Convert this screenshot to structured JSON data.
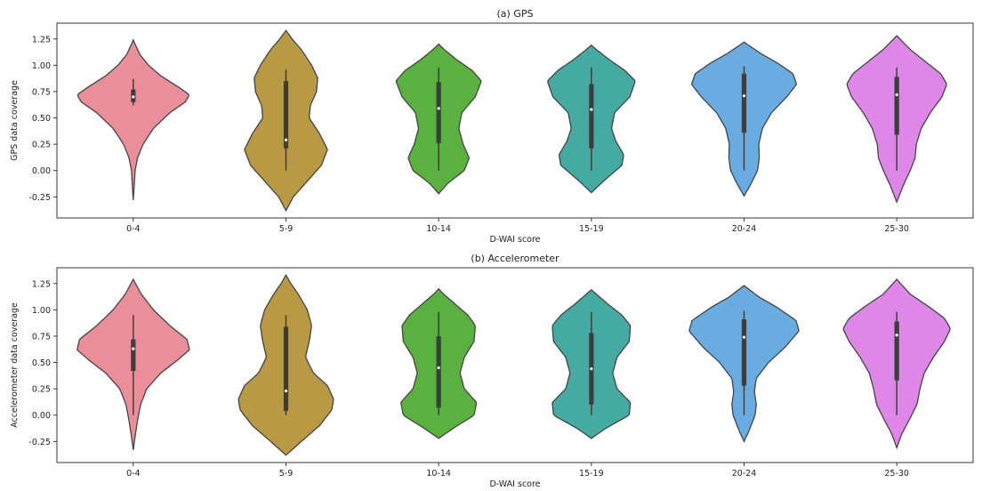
{
  "chart_data": [
    {
      "type": "violin",
      "title": "(a) GPS",
      "xlabel": "D-WAI score",
      "ylabel": "GPS data coverage",
      "ylim": [
        -0.45,
        1.4
      ],
      "yticks": [
        "1.25",
        "1.00",
        "0.75",
        "0.50",
        "0.25",
        "0.00",
        "-0.25"
      ],
      "grid": false,
      "categories": [
        "0-4",
        "5-9",
        "10-14",
        "15-19",
        "20-24",
        "25-30"
      ],
      "colors": [
        "#ea8f99",
        "#b89a44",
        "#5bb140",
        "#45aaa2",
        "#68ace2",
        "#de87e8"
      ],
      "violins": [
        {
          "extent": [
            -0.28,
            1.24
          ],
          "median": 0.7,
          "q1": 0.65,
          "q3": 0.77,
          "whisker": [
            0.62,
            0.87
          ],
          "profile": [
            [
              -0.28,
              0
            ],
            [
              -0.15,
              0.015
            ],
            [
              0.0,
              0.03
            ],
            [
              0.12,
              0.07
            ],
            [
              0.25,
              0.16
            ],
            [
              0.4,
              0.33
            ],
            [
              0.55,
              0.6
            ],
            [
              0.65,
              0.85
            ],
            [
              0.72,
              0.92
            ],
            [
              0.8,
              0.72
            ],
            [
              0.9,
              0.45
            ],
            [
              1.0,
              0.25
            ],
            [
              1.1,
              0.11
            ],
            [
              1.2,
              0.03
            ],
            [
              1.24,
              0
            ]
          ]
        },
        {
          "extent": [
            -0.38,
            1.33
          ],
          "median": 0.29,
          "q1": 0.21,
          "q3": 0.85,
          "whisker": [
            0.0,
            0.96
          ],
          "profile": [
            [
              -0.38,
              0
            ],
            [
              -0.25,
              0.12
            ],
            [
              -0.1,
              0.35
            ],
            [
              0.05,
              0.58
            ],
            [
              0.2,
              0.68
            ],
            [
              0.35,
              0.55
            ],
            [
              0.5,
              0.38
            ],
            [
              0.62,
              0.4
            ],
            [
              0.75,
              0.5
            ],
            [
              0.88,
              0.52
            ],
            [
              1.0,
              0.42
            ],
            [
              1.15,
              0.25
            ],
            [
              1.25,
              0.1
            ],
            [
              1.33,
              0
            ]
          ]
        },
        {
          "extent": [
            -0.22,
            1.2
          ],
          "median": 0.59,
          "q1": 0.26,
          "q3": 0.84,
          "whisker": [
            0.0,
            0.98
          ],
          "profile": [
            [
              -0.22,
              0
            ],
            [
              -0.12,
              0.15
            ],
            [
              0.0,
              0.42
            ],
            [
              0.12,
              0.5
            ],
            [
              0.25,
              0.4
            ],
            [
              0.4,
              0.33
            ],
            [
              0.55,
              0.38
            ],
            [
              0.7,
              0.6
            ],
            [
              0.85,
              0.7
            ],
            [
              0.95,
              0.55
            ],
            [
              1.05,
              0.3
            ],
            [
              1.15,
              0.09
            ],
            [
              1.2,
              0
            ]
          ]
        },
        {
          "extent": [
            -0.21,
            1.19
          ],
          "median": 0.58,
          "q1": 0.21,
          "q3": 0.82,
          "whisker": [
            0.0,
            0.98
          ],
          "profile": [
            [
              -0.21,
              0
            ],
            [
              -0.1,
              0.2
            ],
            [
              0.05,
              0.5
            ],
            [
              0.15,
              0.53
            ],
            [
              0.28,
              0.4
            ],
            [
              0.4,
              0.33
            ],
            [
              0.55,
              0.38
            ],
            [
              0.7,
              0.63
            ],
            [
              0.85,
              0.72
            ],
            [
              0.95,
              0.55
            ],
            [
              1.05,
              0.3
            ],
            [
              1.15,
              0.08
            ],
            [
              1.19,
              0
            ]
          ]
        },
        {
          "extent": [
            -0.24,
            1.22
          ],
          "median": 0.71,
          "q1": 0.36,
          "q3": 0.92,
          "whisker": [
            0.0,
            0.99
          ],
          "profile": [
            [
              -0.24,
              0
            ],
            [
              -0.12,
              0.12
            ],
            [
              0.0,
              0.22
            ],
            [
              0.12,
              0.25
            ],
            [
              0.25,
              0.24
            ],
            [
              0.4,
              0.3
            ],
            [
              0.55,
              0.45
            ],
            [
              0.7,
              0.7
            ],
            [
              0.82,
              0.86
            ],
            [
              0.92,
              0.8
            ],
            [
              1.02,
              0.55
            ],
            [
              1.12,
              0.25
            ],
            [
              1.22,
              0
            ]
          ]
        },
        {
          "extent": [
            -0.3,
            1.28
          ],
          "median": 0.72,
          "q1": 0.34,
          "q3": 0.89,
          "whisker": [
            0.0,
            0.98
          ],
          "profile": [
            [
              -0.3,
              0
            ],
            [
              -0.15,
              0.1
            ],
            [
              0.0,
              0.22
            ],
            [
              0.12,
              0.3
            ],
            [
              0.25,
              0.32
            ],
            [
              0.4,
              0.4
            ],
            [
              0.55,
              0.55
            ],
            [
              0.7,
              0.74
            ],
            [
              0.82,
              0.82
            ],
            [
              0.92,
              0.72
            ],
            [
              1.02,
              0.5
            ],
            [
              1.15,
              0.22
            ],
            [
              1.28,
              0
            ]
          ]
        }
      ]
    },
    {
      "type": "violin",
      "title": "(b) Accelerometer",
      "xlabel": "D-WAI score",
      "ylabel": "Accelerometer data coverage",
      "ylim": [
        -0.45,
        1.4
      ],
      "yticks": [
        "1.25",
        "1.00",
        "0.75",
        "0.50",
        "0.25",
        "0.00",
        "-0.25"
      ],
      "grid": false,
      "categories": [
        "0-4",
        "5-9",
        "10-14",
        "15-19",
        "20-24",
        "25-30"
      ],
      "colors": [
        "#ea8f99",
        "#b89a44",
        "#5bb140",
        "#45aaa2",
        "#68ace2",
        "#de87e8"
      ],
      "violins": [
        {
          "extent": [
            -0.33,
            1.29
          ],
          "median": 0.63,
          "q1": 0.42,
          "q3": 0.72,
          "whisker": [
            0.0,
            0.95
          ],
          "profile": [
            [
              -0.33,
              0
            ],
            [
              -0.2,
              0.03
            ],
            [
              -0.05,
              0.07
            ],
            [
              0.1,
              0.12
            ],
            [
              0.25,
              0.22
            ],
            [
              0.4,
              0.45
            ],
            [
              0.52,
              0.72
            ],
            [
              0.62,
              0.92
            ],
            [
              0.72,
              0.88
            ],
            [
              0.85,
              0.6
            ],
            [
              1.0,
              0.33
            ],
            [
              1.15,
              0.13
            ],
            [
              1.29,
              0
            ]
          ]
        },
        {
          "extent": [
            -0.38,
            1.33
          ],
          "median": 0.23,
          "q1": 0.04,
          "q3": 0.84,
          "whisker": [
            0.0,
            0.95
          ],
          "profile": [
            [
              -0.38,
              0
            ],
            [
              -0.25,
              0.25
            ],
            [
              -0.1,
              0.55
            ],
            [
              0.05,
              0.75
            ],
            [
              0.15,
              0.78
            ],
            [
              0.28,
              0.68
            ],
            [
              0.4,
              0.45
            ],
            [
              0.55,
              0.32
            ],
            [
              0.7,
              0.38
            ],
            [
              0.85,
              0.42
            ],
            [
              1.0,
              0.35
            ],
            [
              1.15,
              0.2
            ],
            [
              1.25,
              0.08
            ],
            [
              1.33,
              0
            ]
          ]
        },
        {
          "extent": [
            -0.22,
            1.2
          ],
          "median": 0.45,
          "q1": 0.07,
          "q3": 0.75,
          "whisker": [
            0.0,
            0.98
          ],
          "profile": [
            [
              -0.22,
              0
            ],
            [
              -0.12,
              0.25
            ],
            [
              0.0,
              0.58
            ],
            [
              0.12,
              0.62
            ],
            [
              0.25,
              0.42
            ],
            [
              0.4,
              0.35
            ],
            [
              0.55,
              0.42
            ],
            [
              0.7,
              0.58
            ],
            [
              0.85,
              0.6
            ],
            [
              0.95,
              0.48
            ],
            [
              1.05,
              0.28
            ],
            [
              1.15,
              0.08
            ],
            [
              1.2,
              0
            ]
          ]
        },
        {
          "extent": [
            -0.22,
            1.19
          ],
          "median": 0.44,
          "q1": 0.1,
          "q3": 0.78,
          "whisker": [
            0.0,
            0.98
          ],
          "profile": [
            [
              -0.22,
              0
            ],
            [
              -0.12,
              0.25
            ],
            [
              0.0,
              0.62
            ],
            [
              0.12,
              0.64
            ],
            [
              0.25,
              0.42
            ],
            [
              0.4,
              0.35
            ],
            [
              0.55,
              0.42
            ],
            [
              0.7,
              0.62
            ],
            [
              0.85,
              0.64
            ],
            [
              0.95,
              0.5
            ],
            [
              1.05,
              0.28
            ],
            [
              1.15,
              0.08
            ],
            [
              1.19,
              0
            ]
          ]
        },
        {
          "extent": [
            -0.25,
            1.23
          ],
          "median": 0.74,
          "q1": 0.28,
          "q3": 0.91,
          "whisker": [
            0.0,
            0.99
          ],
          "profile": [
            [
              -0.25,
              0
            ],
            [
              -0.15,
              0.08
            ],
            [
              0.0,
              0.18
            ],
            [
              0.1,
              0.2
            ],
            [
              0.22,
              0.17
            ],
            [
              0.35,
              0.2
            ],
            [
              0.5,
              0.4
            ],
            [
              0.65,
              0.68
            ],
            [
              0.8,
              0.9
            ],
            [
              0.9,
              0.85
            ],
            [
              1.02,
              0.55
            ],
            [
              1.12,
              0.25
            ],
            [
              1.23,
              0
            ]
          ]
        },
        {
          "extent": [
            -0.31,
            1.29
          ],
          "median": 0.76,
          "q1": 0.33,
          "q3": 0.89,
          "whisker": [
            0.0,
            0.98
          ],
          "profile": [
            [
              -0.31,
              0
            ],
            [
              -0.18,
              0.08
            ],
            [
              -0.05,
              0.2
            ],
            [
              0.1,
              0.33
            ],
            [
              0.25,
              0.38
            ],
            [
              0.4,
              0.45
            ],
            [
              0.55,
              0.6
            ],
            [
              0.7,
              0.78
            ],
            [
              0.82,
              0.88
            ],
            [
              0.92,
              0.78
            ],
            [
              1.02,
              0.55
            ],
            [
              1.15,
              0.22
            ],
            [
              1.29,
              0
            ]
          ]
        }
      ]
    }
  ]
}
